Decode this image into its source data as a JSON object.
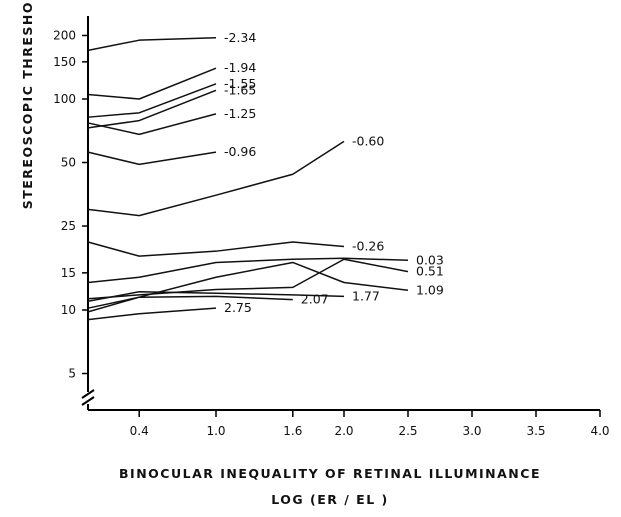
{
  "chart_data": {
    "type": "line",
    "title": "",
    "ylabel": "STEREOSCOPIC THRESHOLD - LOG ηAD (SEC OF ARC)",
    "xlabel_line1": "BINOCULAR INEQUALITY OF RETINAL ILLUMINANCE",
    "xlabel_line2": "LOG (ER / EL )",
    "xlim": [
      0,
      4.0
    ],
    "ylim": [
      4,
      260
    ],
    "y_scale": "log",
    "x_ticks": [
      {
        "v": 0.4,
        "label": "0.4"
      },
      {
        "v": 1.0,
        "label": "1.0"
      },
      {
        "v": 1.6,
        "label": "1.6"
      },
      {
        "v": 2.0,
        "label": "2.0"
      },
      {
        "v": 2.5,
        "label": "2.5"
      },
      {
        "v": 3.0,
        "label": "3.0"
      },
      {
        "v": 3.5,
        "label": "3.5"
      },
      {
        "v": 4.0,
        "label": "4.0"
      }
    ],
    "y_ticks": [
      {
        "v": 200,
        "label": "200"
      },
      {
        "v": 150,
        "label": "150"
      },
      {
        "v": 100,
        "label": "100"
      },
      {
        "v": 50,
        "label": "50"
      },
      {
        "v": 25,
        "label": "25"
      },
      {
        "v": 15,
        "label": "15"
      },
      {
        "v": 10,
        "label": "10"
      },
      {
        "v": 5,
        "label": "5"
      }
    ],
    "series": [
      {
        "name": "-2.34",
        "x": [
          0,
          0.4,
          1.0
        ],
        "y": [
          170,
          190,
          195
        ]
      },
      {
        "name": "-1.94",
        "x": [
          0,
          0.4,
          1.0
        ],
        "y": [
          105,
          100,
          140
        ]
      },
      {
        "name": "-1.55",
        "x": [
          0,
          0.4,
          1.0
        ],
        "y": [
          82,
          86,
          118
        ]
      },
      {
        "name": "-1.65",
        "x": [
          0,
          0.4,
          1.0
        ],
        "y": [
          73,
          79,
          110
        ]
      },
      {
        "name": "-1.25",
        "x": [
          0,
          0.4,
          1.0
        ],
        "y": [
          77,
          68,
          85
        ]
      },
      {
        "name": "-0.96",
        "x": [
          0,
          0.4,
          1.0
        ],
        "y": [
          56,
          49,
          56
        ]
      },
      {
        "name": "-0.60",
        "x": [
          0,
          0.4,
          1.0,
          1.6,
          2.0
        ],
        "y": [
          30,
          28,
          35,
          44,
          63
        ]
      },
      {
        "name": "-0.26",
        "x": [
          0,
          0.4,
          1.0,
          1.6,
          2.0
        ],
        "y": [
          21,
          18,
          19,
          21,
          20
        ]
      },
      {
        "name": "0.03",
        "x": [
          0,
          0.4,
          1.0,
          1.6,
          2.0,
          2.5
        ],
        "y": [
          13.5,
          14.3,
          16.8,
          17.4,
          17.6,
          17.2
        ]
      },
      {
        "name": "0.51",
        "x": [
          0,
          0.4,
          1.0,
          1.6,
          2.0,
          2.5
        ],
        "y": [
          11.3,
          11.8,
          12.5,
          12.8,
          17.4,
          15.2
        ]
      },
      {
        "name": "1.09",
        "x": [
          0,
          0.4,
          1.0,
          1.6,
          2.0,
          2.5
        ],
        "y": [
          10.2,
          11.5,
          14.3,
          16.8,
          13.5,
          12.4
        ]
      },
      {
        "name": "1.77",
        "x": [
          0,
          0.4,
          1.0,
          1.6,
          2.0
        ],
        "y": [
          11.0,
          12.2,
          12.0,
          11.8,
          11.6
        ]
      },
      {
        "name": "2.07",
        "x": [
          0,
          0.4,
          1.0,
          1.6
        ],
        "y": [
          9.8,
          11.5,
          11.6,
          11.2
        ]
      },
      {
        "name": "2.75",
        "x": [
          0,
          0.4,
          1.0
        ],
        "y": [
          9.0,
          9.6,
          10.2
        ]
      }
    ]
  }
}
